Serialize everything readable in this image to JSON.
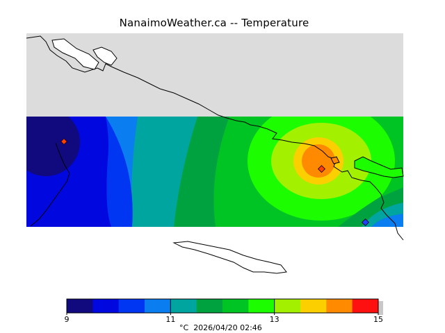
{
  "title": "NanaimoWeather.ca -- Temperature",
  "footer": {
    "unit": "°C",
    "timestamp": "2026/04/20 02:46"
  },
  "colorbar": {
    "min": 9,
    "max": 15,
    "tick_labels": [
      "9",
      "11",
      "13",
      "15"
    ],
    "tick_values": [
      9,
      11,
      13,
      15
    ],
    "colors": [
      "#110a7f",
      "#0008df",
      "#0035f2",
      "#0a7df0",
      "#00a59f",
      "#00a23f",
      "#00c423",
      "#1cfd00",
      "#a3f000",
      "#fcd000",
      "#ff8a00",
      "#ff4500",
      "#ff1010"
    ]
  },
  "colors": {
    "land": "#dcdcdc",
    "coastline": "#000000",
    "marker_fill": "#ff4000"
  },
  "stations": [
    {
      "name": "west-station",
      "value_band": 0
    },
    {
      "name": "nanaimo-station",
      "value_band": 10
    },
    {
      "name": "southeast-station",
      "value_band": 2
    }
  ]
}
